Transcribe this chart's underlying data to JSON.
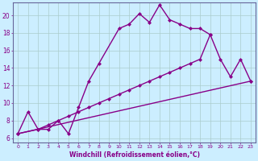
{
  "xlabel": "Windchill (Refroidissement éolien,°C)",
  "bg_color": "#cceeff",
  "line_color": "#880088",
  "xlim": [
    -0.5,
    23.5
  ],
  "ylim": [
    5.5,
    21.5
  ],
  "xticks": [
    0,
    1,
    2,
    3,
    4,
    5,
    6,
    7,
    8,
    9,
    10,
    11,
    12,
    13,
    14,
    15,
    16,
    17,
    18,
    19,
    20,
    21,
    22,
    23
  ],
  "yticks": [
    6,
    8,
    10,
    12,
    14,
    16,
    18,
    20
  ],
  "line1_x": [
    0,
    1,
    2,
    3,
    4,
    5,
    6,
    7,
    8,
    10,
    11,
    12,
    13,
    14,
    15,
    16,
    17,
    18,
    19
  ],
  "line1_y": [
    6.5,
    9.0,
    7.0,
    7.0,
    8.0,
    6.5,
    9.5,
    12.5,
    14.5,
    18.5,
    19.0,
    20.2,
    19.2,
    21.2,
    19.5,
    19.0,
    18.5,
    18.5,
    17.8
  ],
  "line2_x": [
    0,
    2,
    3,
    4,
    5,
    6,
    7,
    8,
    9,
    10,
    11,
    12,
    13,
    14,
    15,
    16,
    17,
    18,
    19,
    20,
    21,
    22,
    23
  ],
  "line2_y": [
    6.5,
    7.0,
    7.5,
    8.0,
    8.5,
    9.0,
    9.5,
    10.0,
    10.5,
    11.0,
    11.5,
    12.0,
    12.5,
    13.0,
    13.5,
    14.0,
    14.5,
    15.0,
    17.8,
    15.0,
    13.0,
    15.0,
    12.5
  ],
  "line3_x": [
    0,
    23
  ],
  "line3_y": [
    6.5,
    12.5
  ],
  "grid_color": "#aacccc",
  "markersize": 2.5,
  "linewidth": 1.0
}
